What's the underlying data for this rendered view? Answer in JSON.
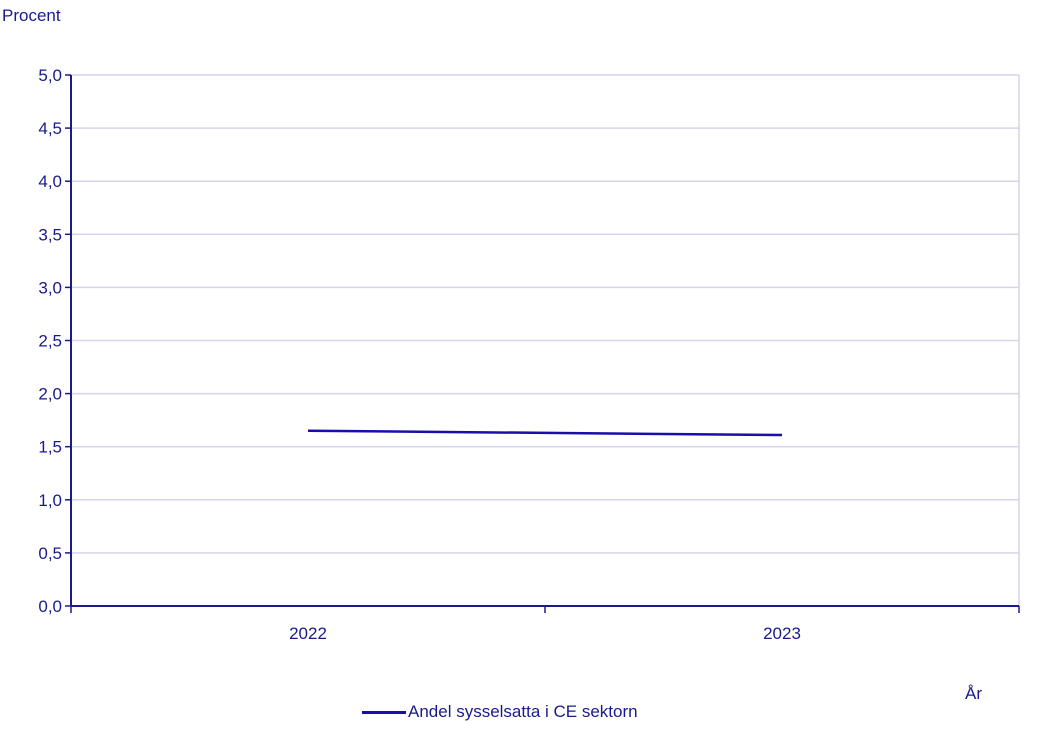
{
  "chart_data": {
    "type": "line",
    "ylabel": "Procent",
    "xlabel": "År",
    "categories": [
      "2022",
      "2023"
    ],
    "y_ticks": [
      "0,0",
      "0,5",
      "1,0",
      "1,5",
      "2,0",
      "2,5",
      "3,0",
      "3,5",
      "4,0",
      "4,5",
      "5,0"
    ],
    "ylim": [
      0,
      5
    ],
    "grid": true,
    "legend_position": "bottom",
    "series": [
      {
        "name": "Andel sysselsatta i CE sektorn",
        "values": [
          1.65,
          1.61
        ]
      }
    ]
  },
  "colors": {
    "series": "#1a0dab",
    "axis": "#1a1a8c",
    "grid": "#d4d4ea",
    "text": "#1a1a8c"
  }
}
